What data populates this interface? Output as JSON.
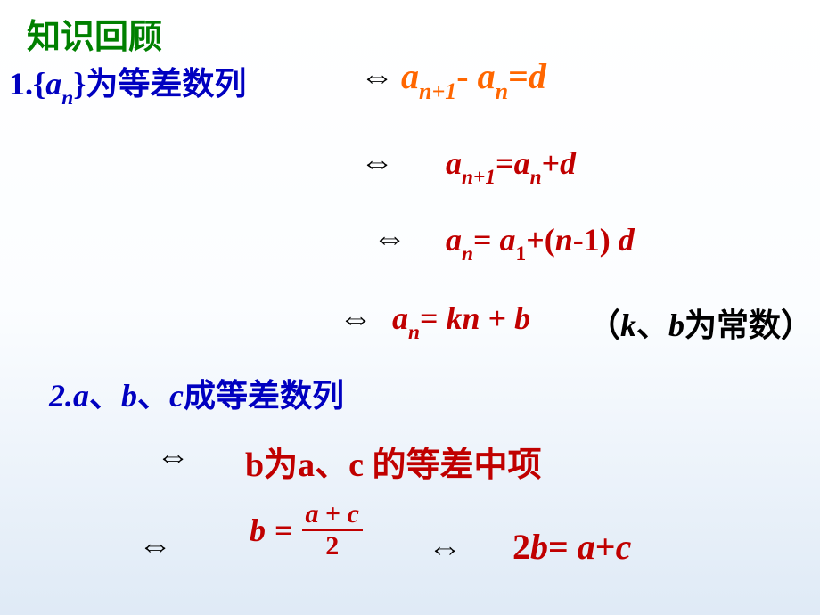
{
  "colors": {
    "green": "#008000",
    "blue": "#0000c0",
    "red": "#c00000",
    "orange": "#ff6600",
    "black": "#000000",
    "bg_top": "#ffffff",
    "bg_bottom": "#dfeaf6"
  },
  "fonts": {
    "title_family": "KaiTi",
    "body_family": "Times New Roman",
    "title_size_pt": 28,
    "body_size_pt": 27,
    "emphasis_size_pt": 30
  },
  "title": "知识回顾",
  "arrow_glyph": "⇔",
  "line1": {
    "num": "1.",
    "open": "{",
    "var": "a",
    "sub": "n",
    "close": "}",
    "text": "为等差数列"
  },
  "eq1": {
    "lhs_var": "a",
    "lhs_sub": "n+1",
    "minus": "-",
    "rhs_var": "a",
    "rhs_sub": "n",
    "eq": "=",
    "d": "d"
  },
  "eq2": {
    "lhs_var": "a",
    "lhs_sub": "n+1",
    "eq": "=",
    "rhs_var": "a",
    "rhs_sub": "n",
    "plus": "+",
    "d": "d"
  },
  "eq3": {
    "lhs_var": "a",
    "lhs_sub": "n",
    "eq": "= ",
    "a1_var": "a",
    "a1_sub": "1",
    "plus": "+(",
    "n": "n",
    "minus1": "-1) ",
    "d": "d"
  },
  "eq4": {
    "lhs_var": "a",
    "lhs_sub": "n",
    "eq": "= ",
    "k": "k",
    "n": "n",
    "plus": "  + ",
    "b": "b",
    "paren_open": "（",
    "kk": "k",
    "sep": "、",
    "bb": "b",
    "const_text": "为常数",
    "paren_close": "）"
  },
  "line2": {
    "num": "2.",
    "a": "a",
    "sep1": "、",
    "b": "b",
    "sep2": "、",
    "c": "c",
    "text": "成等差数列"
  },
  "eq5": {
    "b": "b",
    "mid1": "为",
    "a": "a",
    "sep": "、",
    "c": "c",
    "mid2": " 的等差中项"
  },
  "frac": {
    "b": "b",
    "eq": " = ",
    "num_a": "a",
    "plus": " + ",
    "num_c": "c",
    "den": "2"
  },
  "eq6": {
    "two": "2",
    "b": "b",
    "eq": "= ",
    "a": "a",
    "plus": "+",
    "c": "c"
  }
}
